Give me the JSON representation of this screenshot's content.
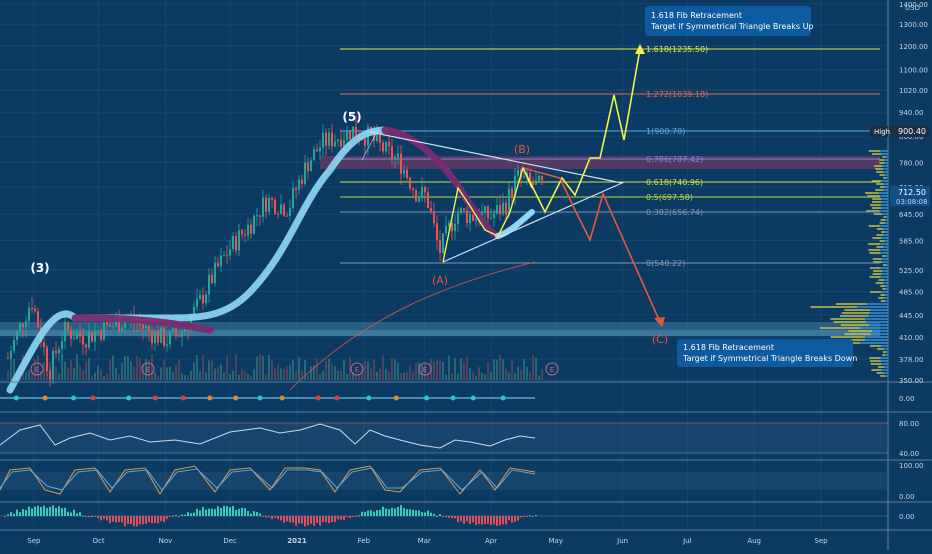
{
  "currency": "USD",
  "price_axis": {
    "ticks": [
      "1400.00",
      "1300.00",
      "1200.00",
      "1100.00",
      "1020.00",
      "940.00",
      "860.00",
      "780.00",
      "712.50",
      "645.00",
      "585.00",
      "525.00",
      "485.00",
      "445.00",
      "410.00",
      "378.00",
      "350.00"
    ],
    "high_label": "High",
    "high_value": "900.40",
    "last_price": "712.50",
    "countdown": "03:08:08"
  },
  "time_axis": {
    "labels": [
      "Sep",
      "Oct",
      "Nov",
      "Dec",
      "2021",
      "Feb",
      "Mar",
      "Apr",
      "May",
      "Jun",
      "Jul",
      "Aug",
      "Sep"
    ]
  },
  "wave_labels": [
    "(3)",
    "(5)",
    "(A)",
    "(B)",
    "(C)"
  ],
  "fib_levels": [
    {
      "label": "1.618(1235.50)",
      "color": "#e6e84a"
    },
    {
      "label": "1.272(1039.18)",
      "color": "#e06a5a"
    },
    {
      "label": "1(900.78)",
      "color": "#5aa9e6"
    },
    {
      "label": "0.786(787.42)",
      "color": "#8a83d8"
    },
    {
      "label": "0.618(740.96)",
      "color": "#d7df3c"
    },
    {
      "label": "0.5(697.58)",
      "color": "#b9d64a"
    },
    {
      "label": "0.382(656.74)",
      "color": "#7a95b0"
    },
    {
      "label": "0(540.22)",
      "color": "#7f9bb5"
    }
  ],
  "callouts": {
    "up": {
      "title": "1.618 Fib Retracement",
      "text": "Target if Symmetrical Triangle Breaks Up"
    },
    "down": {
      "title": "1.618 Fib Retracement",
      "text": "Target if Symmetrical Triangle Breaks Down"
    }
  },
  "event_markers": [
    "E",
    "E",
    "E",
    "E",
    "E"
  ],
  "indicators": {
    "pane1": {
      "ticks": [
        "0.00"
      ]
    },
    "pane2": {
      "ticks": [
        "80.00",
        "40.00"
      ]
    },
    "pane3": {
      "ticks": [
        "100.00",
        "0.00"
      ]
    },
    "pane4": {
      "ticks": [
        "0.00"
      ]
    }
  },
  "colors": {
    "background": "#0b3a63",
    "bull": "#26a69a",
    "bear": "#ef5350",
    "projection_up": "#f2f24a",
    "projection_down": "#e8553f",
    "ribbon_light": "#8fd8f5",
    "ribbon_dark": "#7a2a70",
    "triangle": "#cfe0ee",
    "callout_bg": "#0d5a9e"
  },
  "chart_data": {
    "type": "candlestick",
    "title": "",
    "y_scale": "log",
    "ylim": [
      350,
      1400
    ],
    "x_range": [
      "2020-08-20",
      "2021-09-20"
    ],
    "candles_close_approx": [
      [
        "2020-08-20",
        380
      ],
      [
        "2020-08-31",
        470
      ],
      [
        "2020-09-08",
        360
      ],
      [
        "2020-09-15",
        420
      ],
      [
        "2020-09-25",
        410
      ],
      [
        "2020-10-05",
        425
      ],
      [
        "2020-10-15",
        440
      ],
      [
        "2020-10-26",
        415
      ],
      [
        "2020-11-02",
        405
      ],
      [
        "2020-11-09",
        420
      ],
      [
        "2020-11-16",
        460
      ],
      [
        "2020-11-24",
        520
      ],
      [
        "2020-12-01",
        570
      ],
      [
        "2020-12-10",
        620
      ],
      [
        "2020-12-18",
        680
      ],
      [
        "2020-12-28",
        660
      ],
      [
        "2021-01-06",
        780
      ],
      [
        "2021-01-13",
        840
      ],
      [
        "2021-01-21",
        860
      ],
      [
        "2021-01-27",
        880
      ],
      [
        "2021-02-03",
        860
      ],
      [
        "2021-02-10",
        820
      ],
      [
        "2021-02-18",
        780
      ],
      [
        "2021-02-25",
        700
      ],
      [
        "2021-03-02",
        690
      ],
      [
        "2021-03-08",
        560
      ],
      [
        "2021-03-16",
        650
      ],
      [
        "2021-03-24",
        640
      ],
      [
        "2021-04-01",
        640
      ],
      [
        "2021-04-08",
        670
      ],
      [
        "2021-04-13",
        740
      ],
      [
        "2021-04-20",
        720
      ],
      [
        "2021-04-26",
        712.5
      ]
    ],
    "projection_up_path": [
      [
        "2021-04-26",
        712.5
      ],
      [
        "2021-05-05",
        735
      ],
      [
        "2021-05-10",
        700
      ],
      [
        "2021-05-19",
        820
      ],
      [
        "2021-05-27",
        780
      ],
      [
        "2021-06-03",
        1020
      ],
      [
        "2021-06-08",
        880
      ],
      [
        "2021-06-16",
        1235.5
      ]
    ],
    "projection_down_path": [
      [
        "2021-04-26",
        712.5
      ],
      [
        "2021-05-06",
        650
      ],
      [
        "2021-05-12",
        590
      ],
      [
        "2021-05-20",
        700
      ],
      [
        "2021-06-18",
        420
      ]
    ],
    "high": 900.4
  }
}
